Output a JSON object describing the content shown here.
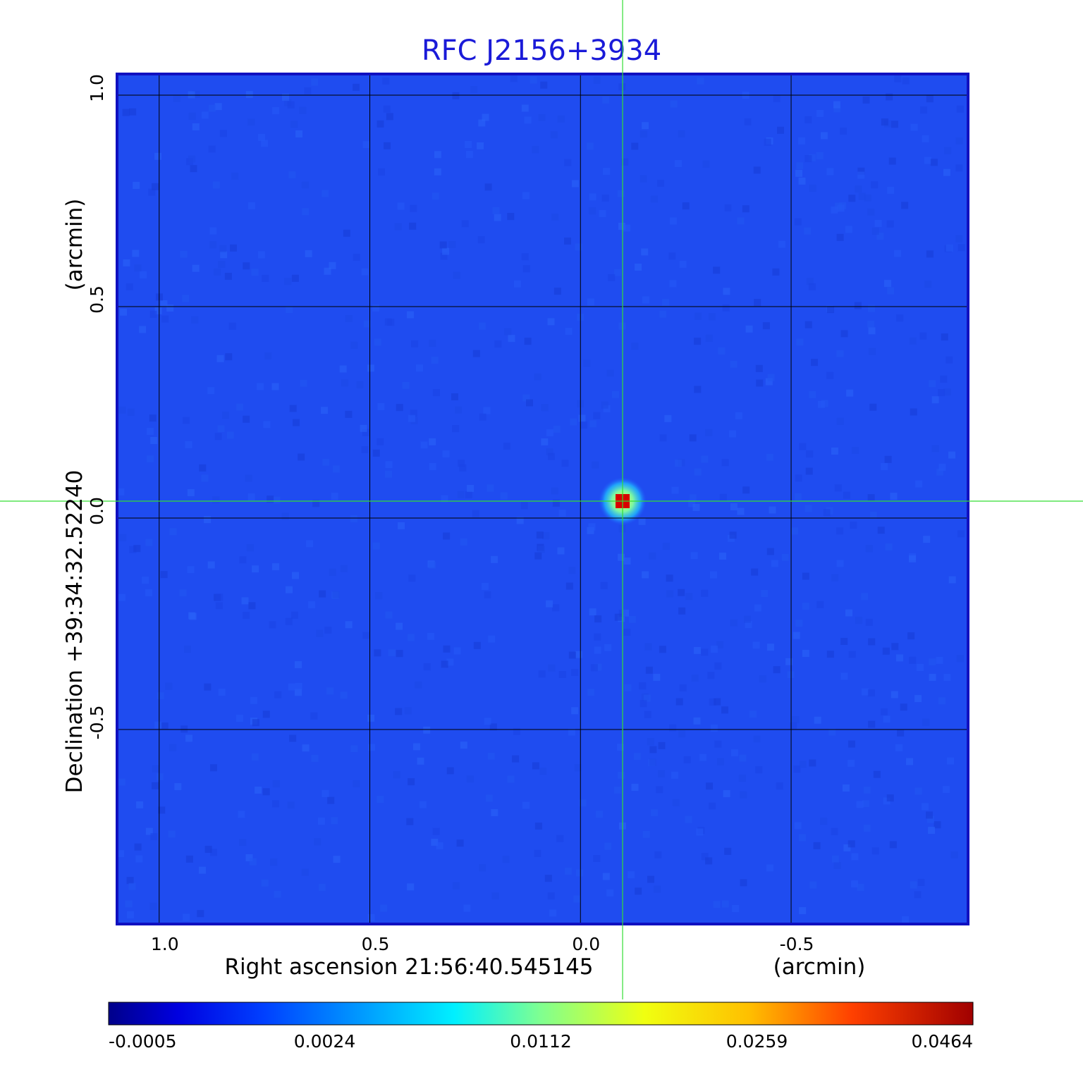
{
  "chart_data": {
    "type": "heatmap",
    "title": "RFC J2156+3934",
    "xlabel": "Right ascension  21:56:40.545145",
    "xunit": "(arcmin)",
    "ylabel": "Declination  +39:34:32.52240",
    "yunit": "(arcmin)",
    "x_ticks": [
      "1.0",
      "0.5",
      "0.0",
      "-0.5"
    ],
    "x_tick_values": [
      1.0,
      0.5,
      0.0,
      -0.5
    ],
    "y_ticks": [
      "1.0",
      "0.5",
      "0.0",
      "-0.5"
    ],
    "y_tick_values": [
      1.0,
      0.5,
      0.0,
      -0.5
    ],
    "xlim": [
      1.1,
      -0.92
    ],
    "ylim": [
      -0.96,
      1.05
    ],
    "grid": true,
    "crosshair": {
      "x": -0.1,
      "y": 0.04,
      "color": "#33dd33"
    },
    "source": {
      "x": -0.1,
      "y": 0.04,
      "peak": 0.0464
    },
    "colormap": "jet",
    "colorbar": {
      "ticks": [
        "-0.0005",
        "0.0024",
        "0.0112",
        "0.0259",
        "0.0464"
      ],
      "values": [
        -0.0005,
        0.0024,
        0.0112,
        0.0259,
        0.0464
      ]
    },
    "frame_color": "#1010c0",
    "background_color": "#1f4cf0"
  }
}
